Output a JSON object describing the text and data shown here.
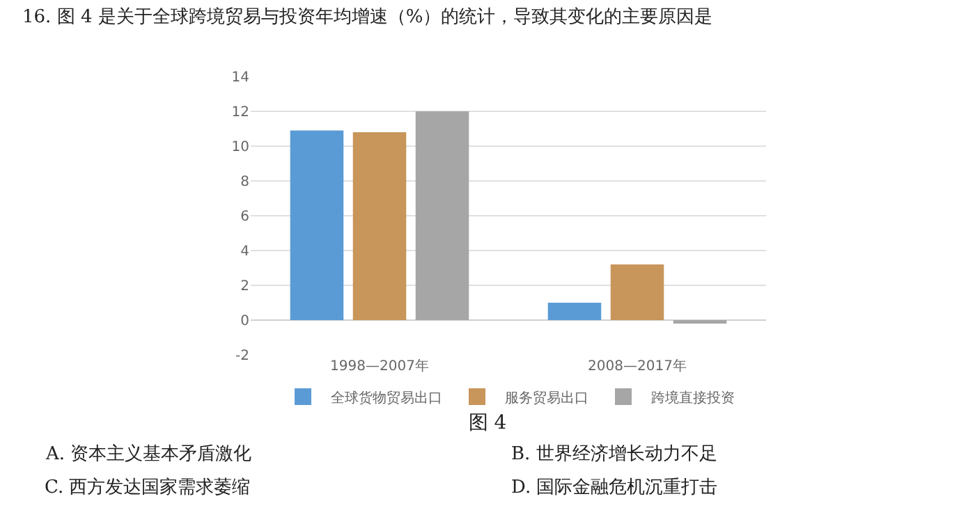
{
  "chart_data": {
    "type": "bar",
    "title": "图 4",
    "categories": [
      "1998—2007年",
      "2008—2017年"
    ],
    "series": [
      {
        "name": "全球货物贸易出口",
        "color": "#5b9bd5",
        "values": [
          10.9,
          1.0
        ]
      },
      {
        "name": "服务贸易出口",
        "color": "#c8955a",
        "values": [
          10.8,
          3.2
        ]
      },
      {
        "name": "跨境直接投资",
        "color": "#a6a6a6",
        "values": [
          12.0,
          -0.2
        ]
      }
    ],
    "ylim": [
      -2,
      14
    ],
    "yticks": [
      -2,
      0,
      2,
      4,
      6,
      8,
      10,
      12,
      14
    ],
    "grid": "y",
    "legend": "bottom",
    "annotations": [
      "16. 图 4 是关于全球跨境贸易与投资年均增速（%）的统计，导致其变化的主要原因是",
      "A. 资本主义基本矛盾激化",
      "B. 世界经济增长动力不足",
      "C. 西方发达国家需求萎缩",
      "D. 国际金融危机沉重打击"
    ]
  }
}
